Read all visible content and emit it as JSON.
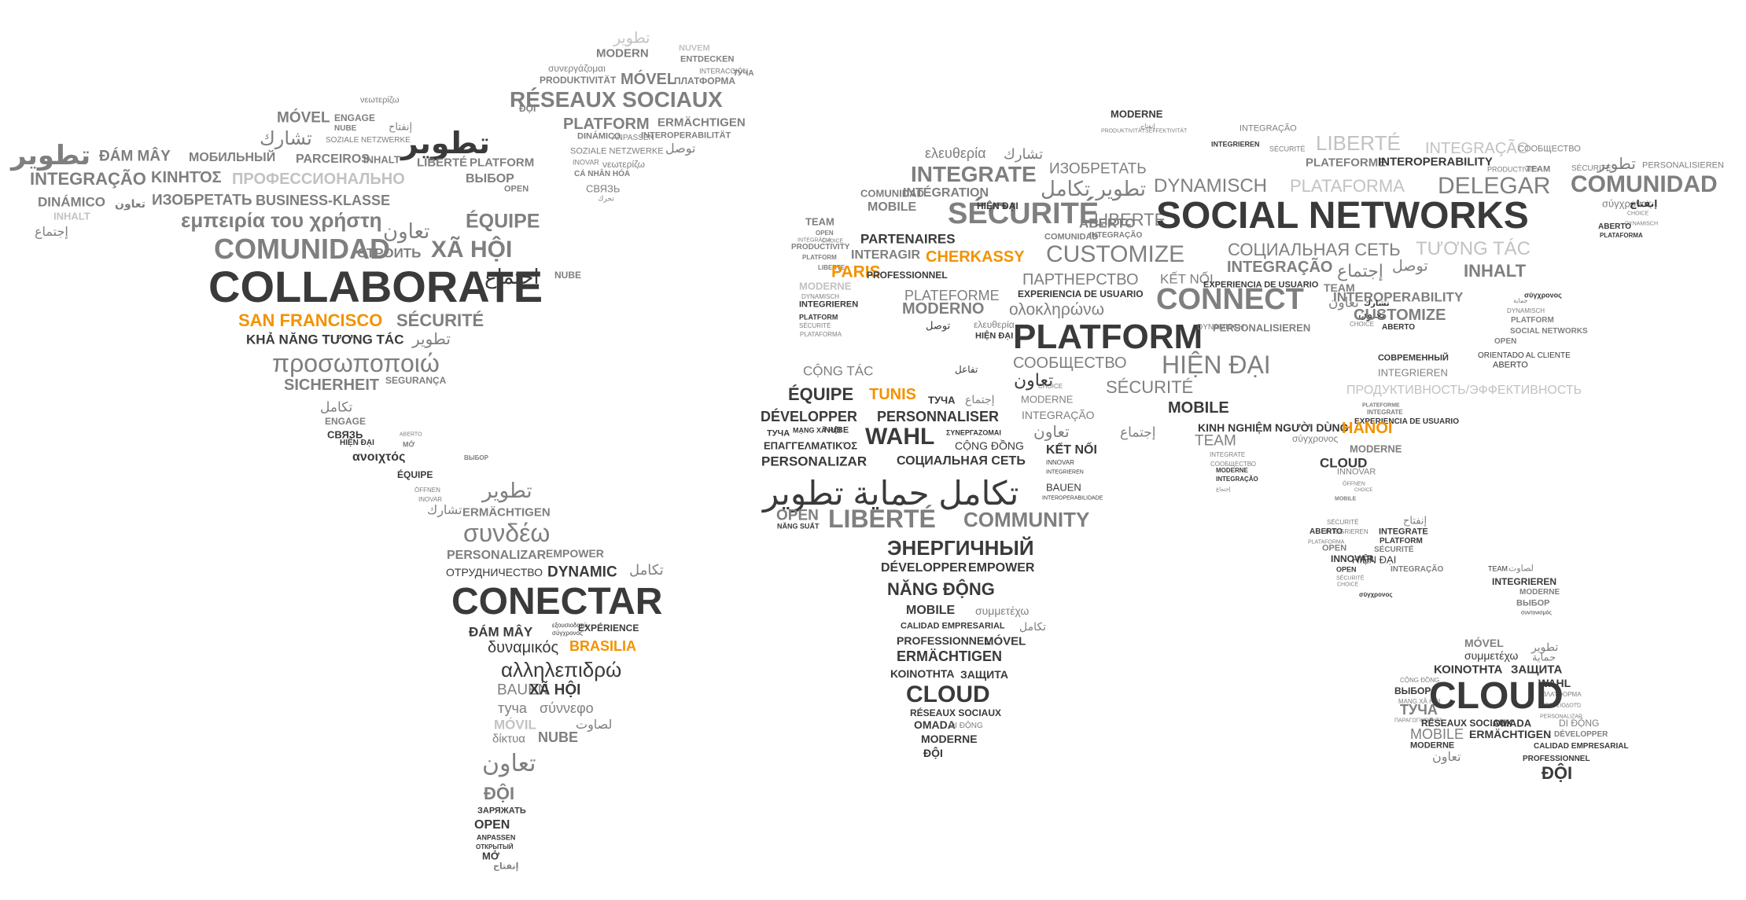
{
  "word_map": {
    "colors": {
      "dark": "#3a3a3a",
      "mid": "#7f7f7f",
      "light": "#a3a3a3",
      "pale": "#c2c2c2",
      "accent": "#f39200"
    },
    "north_america": [
      "تطوير",
      "MÓVEL",
      "νεωτερίζω",
      "ENGAGE",
      "تشارك",
      "إنفتاح",
      "NUBE",
      "SOZIALE NETZWERKE",
      "تطوير",
      "ĐÁM MÂY",
      "МОБИЛЬНЫЙ",
      "INTEGRAÇÃO",
      "ΚΙΝΗΤΌΣ",
      "ПРОФЕССИОНАЛЬНО",
      "LIBERTÉ",
      "PLATFORM",
      "PARCEIROS",
      "INHALT",
      "ВЫБОР",
      "OPEN",
      "DINÁMICO",
      "تعاون",
      "ИЗОБРЕТАТЬ",
      "BUSINESS-KLASSE",
      "INHALT",
      "إجتماع",
      "εμπειρία του χρήστη",
      "ÉQUIPE",
      "تعاون",
      "COMUNIDAD",
      "СТРОИТЬ",
      "XÃ HỘI",
      "إجتماع",
      "NUBE",
      "COLLABORATE",
      "SAN FRANCISCO",
      "SÉCURITÉ",
      "KHẢ NĂNG TƯƠNG TÁC",
      "تطوير",
      "προσωποποιώ",
      "SICHERHEIT",
      "SEGURANÇA",
      "تكامل",
      "ENGAGE",
      "СВЯЗЬ",
      "ABERTO",
      "HIỆN ĐẠI",
      "MỞ",
      "ανοιχτός",
      "ÉQUIPE",
      "ÖFFNEN",
      "INOVAR",
      "تشارك",
      "ВЫБОР"
    ],
    "greenland": [
      "تطوير",
      "MODERN",
      "NUVEM",
      "ENTDECKEN",
      "συνεργάζομαι",
      "INTERACCIÓN",
      "ТУЧА",
      "PRODUKTIVITÄT",
      "MÓVEL",
      "ПЛАТФОРМА",
      "ĐỘI",
      "RÉSEAUX SOCIAUX",
      "PLATFORM",
      "ERMÄCHTIGEN",
      "DINÁMICO",
      "ANPASSEN",
      "INTEROPERABILITÄT",
      "SOZIALE NETZWERKE",
      "توصل",
      "INOVAR",
      "νεωτερίζω",
      "CÁ NHÂN HÓA",
      "СВЯЗЬ",
      "تحرك"
    ],
    "south_america": [
      "تطوير",
      "ERMÄCHTIGEN",
      "συνδέω",
      "PERSONALIZAR",
      "EMPOWER",
      "ОТРУДНИЧЕСТВО",
      "DYNAMIC",
      "تكامل",
      "CONECTAR",
      "ĐÁM MÂY",
      "εξουσιοδοτώ",
      "σύγχρονος",
      "EXPÉRIENCE",
      "δυναμικός",
      "BRASILIA",
      "αλληλεπιδρώ",
      "BAUEN",
      "XÃ HỘI",
      "туча",
      "σύννεφο",
      "لصاوت",
      "MÓVIL",
      "δίκτυα",
      "NUBE",
      "تعاون",
      "ĐỘI",
      "ЗАРЯЖАТЬ",
      "OPEN",
      "ANPASSEN",
      "ОТКРЫТЫЙ",
      "MỞ",
      "إنفتاح"
    ],
    "europe_africa": [
      "TEAM",
      "OPEN",
      "INTEGRÁCIA",
      "CHOICE",
      "PRODUCTIVITY",
      "PLATFORM",
      "LIBERTE",
      "INTERAGIR",
      "CHERKASSY",
      "PARIS",
      "PROFESSIONNEL",
      "PARTENAIRES",
      "MODERNE",
      "DYNAMISCH",
      "INTEGRIEREN",
      "PLATFORM",
      "SÉCURITÉ",
      "PLATAFORMA",
      "ελευθερία",
      "تشارك",
      "INTEGRATE",
      "INTÉGRATION",
      "COMUNIDAD",
      "MOBILE",
      "SÉCURITÉ",
      "تطوير تكامل",
      "ИЗОБРЕТАТЬ",
      "HIỆN ĐẠI",
      "ABERTO",
      "COMUNIDAD",
      "INTEGRAÇÃO",
      "LIBERTÉ",
      "ПАРТНЕРСТВО",
      "PLATEFORME",
      "EXPERIENCIA DE USUARIO",
      "MODERNO",
      "ολοκληρώνω",
      "توصل",
      "ελευθερία",
      "HIỆN ĐẠI",
      "PLATFORM",
      "СООБЩЕСТВО",
      "تعاون",
      "CỘNG TÁC",
      "ÉQUIPE",
      "TUNIS",
      "تفاعل",
      "ТУЧА",
      "إجتماع",
      "CHOICE",
      "MODERNE",
      "DÉVELOPPER",
      "PERSONNALISER",
      "INTEGRAÇÃO",
      "تعاون",
      "إجتماع",
      "ТУЧА",
      "MẠNG XÃ HỘI",
      "NUBE",
      "WAHL",
      "ΣΥΝΕΡΓΑΖΟΜΑΙ",
      "ΕΠΑΓΓΕΛΜΑΤΙΚΌΣ",
      "CỘNG ĐỒNG",
      "PERSONALIZAR",
      "СОЦИАЛЬНАЯ СЕТЬ",
      "KẾT NỐI",
      "INNOVAR",
      "INTEGRIEREN",
      "تكامل حماية تطوير",
      "BAUEN",
      "INTEROPERABILIDADE",
      "OPEN",
      "NĂNG SUẤT",
      "LIBERTÉ",
      "COMMUNITY",
      "ЭНЕРГИЧНЫЙ",
      "DÉVELOPPER",
      "EMPOWER",
      "NĂNG ĐỘNG",
      "MOBILE",
      "συμμετέχω",
      "CALIDAD EMPRESARIAL",
      "تكامل",
      "PROFESSIONNEL",
      "MÓVEL",
      "ERMÄCHTIGEN",
      "ΚΟΙΝΟΤΗΤΑ",
      "ЗАЩИТА",
      "CLOUD",
      "RÉSEAUX SOCIAUX",
      "OMADA",
      "DI ĐỘNG",
      "MODERNE",
      "ĐỘI"
    ],
    "asia": [
      "MODERNE",
      "إنفتاح",
      "INTEGRAÇÃO",
      "PRODUKTIVITÄTSEFFEKTIVITÄT",
      "INTEGRIEREN",
      "SÉCURITÉ",
      "LIBERTÉ",
      "INTEGRAÇÃO",
      "COOБЩЕСТВО",
      "PERSONALISIEREN",
      "PLATEFORME",
      "INTEROPERABILITY",
      "PRODUCTIVITY",
      "TEAM",
      "SÉCURITÉ",
      "تطوير",
      "COMUNIDAD",
      "DYNAMISCH",
      "PLATAFORMA",
      "DELEGAR",
      "σύγχρονος",
      "إنفتاح",
      "CHOICE",
      "DYNAMISCH",
      "ABERTO",
      "PLATAFORMA",
      "SOCIAL NETWORKS",
      "СОЦИАЛЬНАЯ СЕТЬ",
      "TƯƠNG TÁC",
      "CUSTOMIZE",
      "INTEGRAÇÃO",
      "توصل",
      "إجتماع",
      "INHALT",
      "KẾT NỐI",
      "EXPERIENCIA DE USUARIO",
      "CONNECT",
      "TEAM",
      "تعاون",
      "INTEROPERABILITY",
      "تشارك",
      "σύγχρονος",
      "تعاون",
      "CUSTOMIZE",
      "حماية",
      "DYNAMISCH",
      "DYNAMISCH",
      "PERSONALISIEREN",
      "CHOICE",
      "ABERTO",
      "PLATFORM",
      "SOCIAL NETWORKS",
      "OPEN",
      "ORIENTADO AL CLIENTE",
      "ABERTO",
      "HIỆN ĐẠI",
      "СОВРЕМЕННЫЙ",
      "INTEGRIEREN",
      "SÉCURITÉ",
      "ПРОДУКТИВНОСТЬ/ЭФФЕКТИВНОСТЬ",
      "MOBILE",
      "PLATEFORME",
      "INTEGRATE",
      "EXPERIENCIA DE USUARIO",
      "KINH NGHIỆM NGƯỜI DÙNG",
      "HANOI",
      "σύγχρονος",
      "TEAM",
      "INTEGRATE",
      "COOБЩЕСТВО",
      "MODERNE",
      "CLOUD",
      "INNOVAR",
      "MODERNE",
      "INTEGRAÇÃO",
      "ÖFFNEN",
      "إجتماع",
      "CHOICE",
      "MOBILE"
    ],
    "southeast_asia": [
      "إنفتاح",
      "SÉCURITÉ",
      "INTEGRIEREN",
      "INTEGRATE",
      "PLATFORM",
      "ABERTO",
      "PLATAFORMA",
      "SÉCURITÉ",
      "OPEN",
      "INNOVAR",
      "HIỆN ĐẠI",
      "OPEN",
      "INTEGRAÇÃO",
      "SÉCURITÉ",
      "CHOICE",
      "σύγχρονος",
      "TEAM",
      "لصاوت",
      "INTEGRIEREN",
      "MODERNE",
      "ВЫБОР",
      "συντονισμός"
    ],
    "australia": [
      "MÓVEL",
      "تطوير",
      "συμμετέχω",
      "حماية",
      "ΚΟΙΝΟΤΗΤΑ",
      "ЗАЩИТА",
      "CỘNG ĐỒNG",
      "WAHL",
      "ВЫБОР",
      "ΠΛΑΤΦΟΡΜΑ",
      "MẠNG XÃ HỘI",
      "ΕΞΟΥΣΙΟΔΟΤΏ",
      "ТУЧА",
      "CLOUD",
      "ΠΑΡΑΓΩΓΙΚΌΤΗΤΑ",
      "PERSONALIZAR",
      "RÉSEAUX SOCIAUX",
      "OMADA",
      "DI ĐỘNG",
      "MOBILE",
      "ERMÄCHTIGEN",
      "DÉVELOPPER",
      "MODERNE",
      "CALIDAD EMPRESARIAL",
      "تعاون",
      "PROFESSIONNEL",
      "ĐỘI"
    ]
  }
}
